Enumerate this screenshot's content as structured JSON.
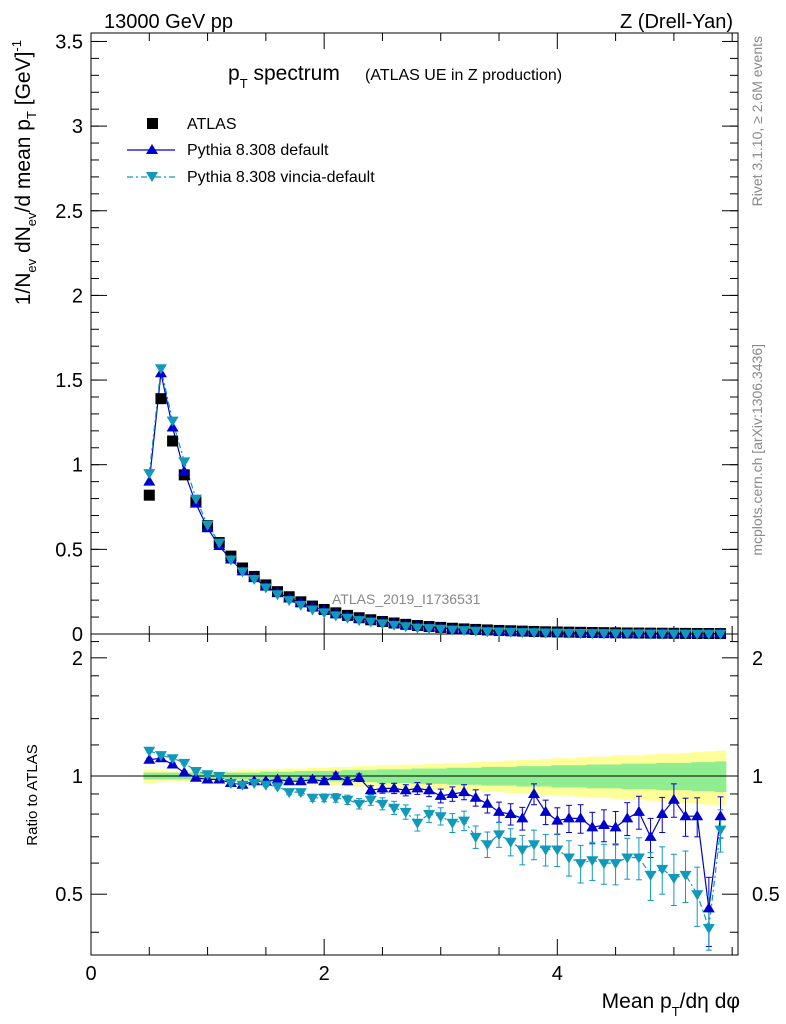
{
  "header": {
    "left": "13000 GeV pp",
    "right": "Z (Drell-Yan)"
  },
  "title": {
    "main": "p",
    "main_sub": "T",
    "main_rest": " spectrum",
    "suffix": "(ATLAS UE in Z production)"
  },
  "side_labels": {
    "rivet": "Rivet 3.1.10, ≥ 2.6M events",
    "mcplots": "mcplots.cern.ch [arXiv:1306.3436]"
  },
  "watermark": "ATLAS_2019_I1736531",
  "legend": {
    "atlas": "ATLAS",
    "default": "Pythia 8.308 default",
    "vincia": "Pythia 8.308 vincia-default"
  },
  "axes": {
    "ylabel_main": "1/N_ev dN_ev/d mean p_T [GeV]^-1",
    "ylabel_ratio": "Ratio to ATLAS",
    "xlabel": "Mean p_T/dη dφ"
  },
  "colors": {
    "data": "#000000",
    "default": "#0000cc",
    "vincia": "#1199bb",
    "band_inner": "#90ee90",
    "band_outer": "#ffff99"
  },
  "chart_data": [
    {
      "type": "line",
      "panel": "main",
      "xlim": [
        0,
        5.55
      ],
      "ylim": [
        0,
        3.55
      ],
      "xticks": [
        0,
        2,
        4
      ],
      "yticks": [
        0,
        0.5,
        1,
        1.5,
        2,
        2.5,
        3,
        3.5
      ],
      "x": [
        0.5,
        0.6,
        0.7,
        0.8,
        0.9,
        1.0,
        1.1,
        1.2,
        1.3,
        1.4,
        1.5,
        1.6,
        1.7,
        1.8,
        1.9,
        2.0,
        2.1,
        2.2,
        2.3,
        2.4,
        2.5,
        2.6,
        2.7,
        2.8,
        2.9,
        3.0,
        3.1,
        3.2,
        3.3,
        3.4,
        3.5,
        3.6,
        3.7,
        3.8,
        3.9,
        4.0,
        4.1,
        4.2,
        4.3,
        4.4,
        4.5,
        4.6,
        4.7,
        4.8,
        4.9,
        5.0,
        5.1,
        5.2,
        5.3,
        5.4
      ],
      "series": [
        {
          "name": "ATLAS",
          "marker": "square",
          "values": [
            0.82,
            1.39,
            1.14,
            0.94,
            0.78,
            0.64,
            0.54,
            0.46,
            0.39,
            0.34,
            0.29,
            0.25,
            0.22,
            0.19,
            0.165,
            0.145,
            0.125,
            0.11,
            0.096,
            0.084,
            0.074,
            0.065,
            0.057,
            0.05,
            0.044,
            0.039,
            0.034,
            0.03,
            0.027,
            0.024,
            0.021,
            0.019,
            0.017,
            0.015,
            0.013,
            0.012,
            0.011,
            0.01,
            0.009,
            0.008,
            0.007,
            0.006,
            0.0055,
            0.005,
            0.0045,
            0.004,
            0.0036,
            0.0032,
            0.0029,
            0.0026
          ]
        },
        {
          "name": "Pythia 8.308 default",
          "marker": "triangle-up",
          "values": [
            0.9,
            1.54,
            1.22,
            0.96,
            0.77,
            0.625,
            0.52,
            0.44,
            0.37,
            0.33,
            0.28,
            0.245,
            0.21,
            0.185,
            0.16,
            0.142,
            0.12,
            0.108,
            0.092,
            0.082,
            0.071,
            0.063,
            0.054,
            0.048,
            0.042,
            0.037,
            0.031,
            0.027,
            0.024,
            0.021,
            0.018,
            0.016,
            0.0135,
            0.0135,
            0.011,
            0.0095,
            0.0085,
            0.0078,
            0.0068,
            0.0062,
            0.0056,
            0.0051,
            0.0043,
            0.0036,
            0.0037,
            0.0033,
            0.0028,
            0.0025,
            0.002,
            0.0021
          ]
        },
        {
          "name": "Pythia 8.308 vincia-default",
          "marker": "triangle-down",
          "values": [
            0.95,
            1.57,
            1.26,
            1.02,
            0.8,
            0.645,
            0.54,
            0.44,
            0.37,
            0.325,
            0.275,
            0.235,
            0.2,
            0.172,
            0.145,
            0.128,
            0.11,
            0.096,
            0.082,
            0.073,
            0.063,
            0.054,
            0.046,
            0.038,
            0.035,
            0.031,
            0.026,
            0.023,
            0.019,
            0.016,
            0.015,
            0.013,
            0.011,
            0.01,
            0.0085,
            0.0078,
            0.0068,
            0.006,
            0.0055,
            0.0048,
            0.0042,
            0.0037,
            0.0034,
            0.0028,
            0.0026,
            0.0022,
            0.002,
            0.0016,
            0.0012,
            0.0019
          ]
        }
      ]
    },
    {
      "type": "line",
      "panel": "ratio",
      "xlim": [
        0,
        5.55
      ],
      "ylim": [
        0.35,
        2.3
      ],
      "xticks": [
        0,
        2,
        4
      ],
      "yticks": [
        0.5,
        1,
        2
      ],
      "xlabel": "Mean p_T/dη dφ",
      "ylabel": "Ratio to ATLAS",
      "x": [
        0.5,
        0.6,
        0.7,
        0.8,
        0.9,
        1.0,
        1.1,
        1.2,
        1.3,
        1.4,
        1.5,
        1.6,
        1.7,
        1.8,
        1.9,
        2.0,
        2.1,
        2.2,
        2.3,
        2.4,
        2.5,
        2.6,
        2.7,
        2.8,
        2.9,
        3.0,
        3.1,
        3.2,
        3.3,
        3.4,
        3.5,
        3.6,
        3.7,
        3.8,
        3.9,
        4.0,
        4.1,
        4.2,
        4.3,
        4.4,
        4.5,
        4.6,
        4.7,
        4.8,
        4.9,
        5.0,
        5.1,
        5.2,
        5.3,
        5.4
      ],
      "band_inner": [
        0.02,
        0.02,
        0.02,
        0.02,
        0.02,
        0.02,
        0.02,
        0.02,
        0.02,
        0.02,
        0.025,
        0.025,
        0.025,
        0.03,
        0.03,
        0.03,
        0.03,
        0.035,
        0.035,
        0.035,
        0.04,
        0.04,
        0.04,
        0.045,
        0.045,
        0.045,
        0.05,
        0.05,
        0.05,
        0.055,
        0.055,
        0.055,
        0.06,
        0.06,
        0.06,
        0.065,
        0.065,
        0.065,
        0.07,
        0.07,
        0.07,
        0.075,
        0.075,
        0.075,
        0.08,
        0.08,
        0.08,
        0.085,
        0.085,
        0.09
      ],
      "band_outer": [
        0.04,
        0.035,
        0.03,
        0.03,
        0.03,
        0.03,
        0.03,
        0.03,
        0.035,
        0.035,
        0.04,
        0.04,
        0.045,
        0.045,
        0.05,
        0.05,
        0.055,
        0.055,
        0.06,
        0.06,
        0.065,
        0.065,
        0.07,
        0.07,
        0.075,
        0.075,
        0.08,
        0.08,
        0.085,
        0.09,
        0.09,
        0.095,
        0.1,
        0.1,
        0.105,
        0.11,
        0.11,
        0.115,
        0.12,
        0.12,
        0.125,
        0.13,
        0.13,
        0.135,
        0.14,
        0.14,
        0.145,
        0.15,
        0.155,
        0.16
      ],
      "series": [
        {
          "name": "Pythia 8.308 default",
          "marker": "triangle-up",
          "values": [
            1.1,
            1.11,
            1.07,
            1.02,
            0.99,
            0.98,
            0.98,
            0.96,
            0.95,
            0.97,
            0.97,
            0.98,
            0.97,
            0.97,
            0.98,
            0.97,
            1.0,
            0.97,
            0.99,
            0.92,
            0.93,
            0.93,
            0.92,
            0.93,
            0.92,
            0.89,
            0.9,
            0.91,
            0.88,
            0.85,
            0.81,
            0.8,
            0.78,
            0.9,
            0.81,
            0.77,
            0.78,
            0.78,
            0.74,
            0.75,
            0.74,
            0.78,
            0.81,
            0.7,
            0.8,
            0.87,
            0.79,
            0.79,
            0.46,
            0.79
          ],
          "err": [
            0.01,
            0.01,
            0.01,
            0.01,
            0.01,
            0.01,
            0.01,
            0.01,
            0.01,
            0.01,
            0.01,
            0.01,
            0.012,
            0.014,
            0.015,
            0.016,
            0.018,
            0.02,
            0.022,
            0.024,
            0.026,
            0.028,
            0.03,
            0.032,
            0.034,
            0.036,
            0.038,
            0.04,
            0.042,
            0.045,
            0.048,
            0.05,
            0.052,
            0.055,
            0.058,
            0.06,
            0.062,
            0.065,
            0.068,
            0.07,
            0.072,
            0.075,
            0.078,
            0.08,
            0.082,
            0.085,
            0.088,
            0.09,
            0.092,
            0.095
          ]
        },
        {
          "name": "Pythia 8.308 vincia-default",
          "marker": "triangle-down",
          "values": [
            1.16,
            1.13,
            1.11,
            1.08,
            1.03,
            1.01,
            1.0,
            0.96,
            0.95,
            0.96,
            0.95,
            0.94,
            0.91,
            0.91,
            0.88,
            0.88,
            0.88,
            0.87,
            0.85,
            0.87,
            0.85,
            0.83,
            0.81,
            0.76,
            0.8,
            0.79,
            0.76,
            0.77,
            0.7,
            0.67,
            0.71,
            0.68,
            0.65,
            0.67,
            0.65,
            0.65,
            0.62,
            0.6,
            0.61,
            0.6,
            0.6,
            0.62,
            0.62,
            0.56,
            0.58,
            0.55,
            0.56,
            0.5,
            0.41,
            0.73
          ],
          "err": [
            0.01,
            0.01,
            0.01,
            0.01,
            0.01,
            0.01,
            0.01,
            0.01,
            0.01,
            0.01,
            0.01,
            0.012,
            0.014,
            0.016,
            0.018,
            0.02,
            0.022,
            0.024,
            0.026,
            0.028,
            0.03,
            0.032,
            0.034,
            0.036,
            0.038,
            0.04,
            0.042,
            0.044,
            0.046,
            0.05,
            0.052,
            0.054,
            0.056,
            0.058,
            0.06,
            0.062,
            0.064,
            0.066,
            0.068,
            0.07,
            0.072,
            0.074,
            0.076,
            0.078,
            0.08,
            0.082,
            0.084,
            0.086,
            0.088,
            0.09
          ]
        }
      ]
    }
  ]
}
